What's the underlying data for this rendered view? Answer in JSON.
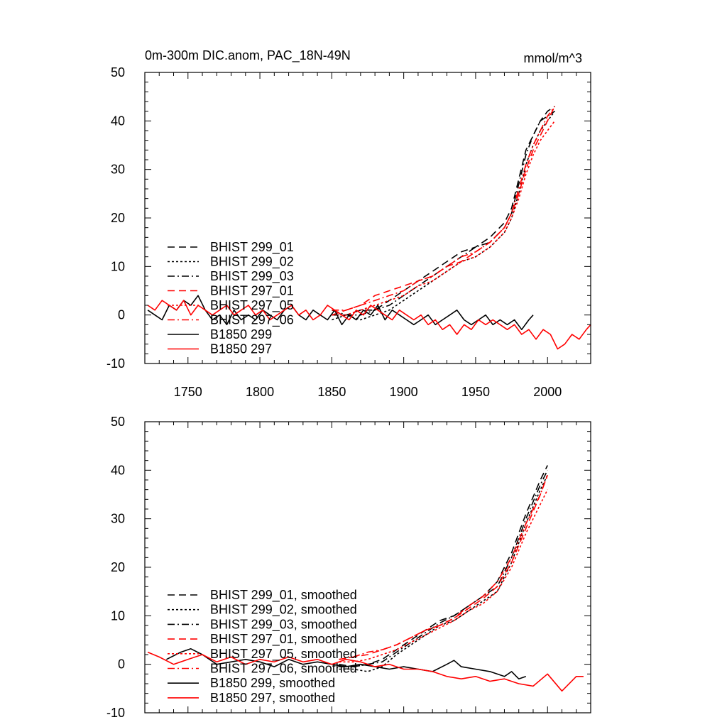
{
  "colors": {
    "black": "#000000",
    "red": "#ff0000"
  },
  "chart_data": [
    {
      "type": "line",
      "title": "0m-300m DIC.anom, PAC_18N-49N",
      "units": "mmol/m^3",
      "xlim": [
        1720,
        2030
      ],
      "ylim": [
        -10,
        50
      ],
      "x_ticks": [
        "1750",
        "1800",
        "1850",
        "1900",
        "1950",
        "2000"
      ],
      "y_ticks": [
        "-10",
        "0",
        "10",
        "20",
        "30",
        "40",
        "50"
      ],
      "legend_position": "left-center",
      "series": [
        {
          "name": "BHIST 299_01",
          "color": "#000000",
          "dash": "long-dash",
          "x": [
            1850,
            1860,
            1870,
            1880,
            1890,
            1900,
            1910,
            1920,
            1930,
            1940,
            1950,
            1960,
            1970,
            1975,
            1980,
            1985,
            1990,
            1995,
            2000,
            2005
          ],
          "y": [
            0,
            0,
            1,
            1,
            3,
            5,
            7,
            9,
            11,
            13,
            14,
            16,
            19,
            22,
            28,
            34,
            37,
            40,
            42,
            43
          ]
        },
        {
          "name": "BHIST 299_02",
          "color": "#000000",
          "dash": "short-dash",
          "x": [
            1850,
            1860,
            1870,
            1880,
            1890,
            1900,
            1910,
            1920,
            1930,
            1940,
            1950,
            1960,
            1970,
            1975,
            1980,
            1985,
            1990,
            1995,
            2000,
            2005
          ],
          "y": [
            -1,
            0,
            -1,
            0,
            1,
            3,
            5,
            7,
            9,
            11,
            12,
            14,
            17,
            20,
            25,
            31,
            35,
            38,
            40,
            42
          ]
        },
        {
          "name": "BHIST 299_03",
          "color": "#000000",
          "dash": "dash-dot",
          "x": [
            1850,
            1860,
            1870,
            1880,
            1890,
            1900,
            1910,
            1920,
            1930,
            1940,
            1950,
            1960,
            1970,
            1975,
            1980,
            1985,
            1990,
            1995,
            2000,
            2005
          ],
          "y": [
            1,
            0,
            0,
            1,
            2,
            4,
            6,
            8,
            10,
            12,
            14,
            15,
            18,
            21,
            27,
            33,
            37,
            40,
            41,
            42
          ]
        },
        {
          "name": "BHIST 297_01",
          "color": "#ff0000",
          "dash": "long-dash",
          "x": [
            1850,
            1860,
            1870,
            1880,
            1890,
            1900,
            1910,
            1920,
            1930,
            1940,
            1950,
            1960,
            1970,
            1975,
            1980,
            1985,
            1990,
            1995,
            2000,
            2005
          ],
          "y": [
            0,
            1,
            2,
            4,
            5,
            6,
            7,
            8,
            10,
            11,
            13,
            15,
            18,
            21,
            25,
            30,
            34,
            37,
            40,
            43
          ]
        },
        {
          "name": "BHIST 297_05",
          "color": "#ff0000",
          "dash": "short-dash",
          "x": [
            1850,
            1860,
            1870,
            1880,
            1890,
            1900,
            1910,
            1920,
            1930,
            1940,
            1950,
            1960,
            1970,
            1975,
            1980,
            1985,
            1990,
            1995,
            2000,
            2005
          ],
          "y": [
            0,
            0,
            1,
            2,
            3,
            4,
            6,
            7,
            9,
            11,
            12,
            14,
            17,
            20,
            24,
            29,
            33,
            36,
            38,
            40
          ]
        },
        {
          "name": "BHIST 297_06",
          "color": "#ff0000",
          "dash": "dash-dot",
          "x": [
            1850,
            1860,
            1870,
            1880,
            1890,
            1900,
            1910,
            1920,
            1930,
            1940,
            1950,
            1960,
            1970,
            1975,
            1980,
            1985,
            1990,
            1995,
            2000,
            2005
          ],
          "y": [
            1,
            1,
            2,
            3,
            4,
            5,
            7,
            8,
            10,
            12,
            13,
            15,
            18,
            21,
            26,
            31,
            35,
            38,
            41,
            43
          ]
        },
        {
          "name": "B1850 299",
          "color": "#000000",
          "dash": "solid",
          "x": [
            1722,
            1727,
            1732,
            1737,
            1742,
            1747,
            1752,
            1757,
            1762,
            1767,
            1772,
            1777,
            1782,
            1787,
            1792,
            1797,
            1802,
            1807,
            1812,
            1817,
            1822,
            1827,
            1832,
            1837,
            1842,
            1847,
            1852,
            1857,
            1862,
            1867,
            1872,
            1877,
            1882,
            1887,
            1892,
            1897,
            1902,
            1907,
            1912,
            1917,
            1922,
            1927,
            1932,
            1937,
            1942,
            1947,
            1952,
            1957,
            1962,
            1967,
            1972,
            1977,
            1982,
            1987,
            1990
          ],
          "y": [
            1,
            0,
            -1,
            2,
            1,
            3,
            2,
            4,
            1,
            -1,
            0,
            -2,
            1,
            -1,
            0,
            -1,
            1,
            0,
            -1,
            1,
            2,
            0,
            -1,
            1,
            0,
            -1,
            1,
            -2,
            0,
            -1,
            1,
            0,
            2,
            -1,
            1,
            0,
            -1,
            -2,
            -1,
            0,
            -2,
            -1,
            0,
            1,
            -1,
            -2,
            -1,
            0,
            -2,
            -1,
            -2,
            -1,
            -3,
            -1,
            0
          ]
        },
        {
          "name": "B1850 297",
          "color": "#ff0000",
          "dash": "solid",
          "x": [
            1722,
            1727,
            1732,
            1737,
            1742,
            1747,
            1752,
            1757,
            1762,
            1767,
            1772,
            1777,
            1782,
            1787,
            1792,
            1797,
            1802,
            1807,
            1812,
            1817,
            1822,
            1827,
            1832,
            1837,
            1842,
            1847,
            1852,
            1857,
            1862,
            1867,
            1872,
            1877,
            1882,
            1887,
            1892,
            1897,
            1902,
            1907,
            1912,
            1917,
            1922,
            1927,
            1932,
            1937,
            1942,
            1947,
            1952,
            1957,
            1962,
            1967,
            1972,
            1977,
            1982,
            1987,
            1992,
            1997,
            2002,
            2007,
            2012,
            2017,
            2022,
            2027,
            2030
          ],
          "y": [
            2,
            1,
            3,
            2,
            1,
            3,
            0,
            2,
            1,
            0,
            1,
            2,
            0,
            1,
            2,
            0,
            1,
            -1,
            0,
            1,
            2,
            0,
            1,
            -1,
            0,
            2,
            1,
            0,
            -1,
            1,
            0,
            2,
            1,
            0,
            -1,
            1,
            0,
            -1,
            0,
            -2,
            -1,
            -3,
            -2,
            -4,
            -2,
            -3,
            -1,
            -2,
            -1,
            -2,
            -3,
            -2,
            -4,
            -3,
            -5,
            -3,
            -4,
            -7,
            -6,
            -4,
            -5,
            -3,
            -2
          ]
        }
      ]
    },
    {
      "type": "line",
      "xlim": [
        1720,
        2030
      ],
      "ylim": [
        -10,
        50
      ],
      "y_ticks": [
        "-10",
        "0",
        "10",
        "20",
        "30",
        "40",
        "50"
      ],
      "legend_position": "left-bottom",
      "series": [
        {
          "name": "BHIST 299_01, smoothed",
          "color": "#000000",
          "dash": "long-dash",
          "x": [
            1855,
            1865,
            1875,
            1885,
            1895,
            1905,
            1915,
            1925,
            1935,
            1945,
            1955,
            1965,
            1975,
            1985,
            1995,
            2000
          ],
          "y": [
            -0.5,
            -0.5,
            0,
            1,
            3,
            5,
            7,
            9,
            10,
            12,
            14,
            17,
            23,
            31,
            38,
            41
          ]
        },
        {
          "name": "BHIST 299_02, smoothed",
          "color": "#000000",
          "dash": "short-dash",
          "x": [
            1855,
            1865,
            1875,
            1885,
            1895,
            1905,
            1915,
            1925,
            1935,
            1945,
            1955,
            1965,
            1975,
            1985,
            1995,
            2000
          ],
          "y": [
            -1,
            -1,
            -1.5,
            -0.5,
            2,
            4,
            6,
            8,
            9,
            11,
            13,
            15,
            21,
            29,
            36,
            39
          ]
        },
        {
          "name": "BHIST 299_03, smoothed",
          "color": "#000000",
          "dash": "dash-dot",
          "x": [
            1855,
            1865,
            1875,
            1885,
            1895,
            1905,
            1915,
            1925,
            1935,
            1945,
            1955,
            1965,
            1975,
            1985,
            1995,
            2000
          ],
          "y": [
            0,
            -0.5,
            0,
            0.5,
            2.5,
            4.5,
            6.5,
            8.5,
            10,
            12,
            14,
            16,
            22,
            30,
            37,
            40
          ]
        },
        {
          "name": "BHIST 297_01, smoothed",
          "color": "#ff0000",
          "dash": "long-dash",
          "x": [
            1855,
            1865,
            1875,
            1885,
            1895,
            1905,
            1915,
            1925,
            1935,
            1945,
            1955,
            1965,
            1975,
            1985,
            1995,
            2000
          ],
          "y": [
            1,
            1.5,
            2,
            3,
            4,
            5.5,
            7,
            8,
            9.5,
            11.5,
            13.5,
            16,
            21,
            28,
            35,
            39
          ]
        },
        {
          "name": "BHIST 297_05, smoothed",
          "color": "#ff0000",
          "dash": "short-dash",
          "x": [
            1855,
            1865,
            1875,
            1885,
            1895,
            1905,
            1915,
            1925,
            1935,
            1945,
            1955,
            1965,
            1975,
            1985,
            1995,
            2000
          ],
          "y": [
            0.5,
            0.5,
            1,
            2,
            3,
            4.5,
            6,
            7.5,
            9,
            11,
            12.5,
            15,
            20,
            27,
            33,
            36
          ]
        },
        {
          "name": "BHIST 297_06, smoothed",
          "color": "#ff0000",
          "dash": "dash-dot",
          "x": [
            1855,
            1865,
            1875,
            1885,
            1895,
            1905,
            1915,
            1925,
            1935,
            1945,
            1955,
            1965,
            1975,
            1985,
            1995,
            2000
          ],
          "y": [
            1,
            1.5,
            2.5,
            3,
            4,
            5.5,
            7,
            8,
            9.5,
            12,
            14,
            17,
            22,
            29,
            35,
            39
          ]
        },
        {
          "name": "B1850 299, smoothed",
          "color": "#000000",
          "dash": "solid",
          "x": [
            1735,
            1745,
            1752,
            1760,
            1770,
            1780,
            1790,
            1800,
            1810,
            1820,
            1830,
            1840,
            1850,
            1860,
            1870,
            1880,
            1890,
            1900,
            1910,
            1920,
            1930,
            1935,
            1940,
            1950,
            1960,
            1970,
            1975,
            1980,
            1985
          ],
          "y": [
            1,
            2.5,
            3.2,
            2,
            0,
            0.5,
            1,
            0.5,
            -0.5,
            1,
            0,
            0.5,
            0,
            -0.5,
            0,
            -0.5,
            -1,
            -0.5,
            -1,
            -1.5,
            0,
            0.8,
            -0.5,
            -1,
            -1.5,
            -2.5,
            -1.5,
            -3,
            -2.5
          ]
        },
        {
          "name": "B1850 297, smoothed",
          "color": "#ff0000",
          "dash": "solid",
          "x": [
            1722,
            1730,
            1740,
            1750,
            1760,
            1770,
            1780,
            1790,
            1800,
            1810,
            1820,
            1830,
            1840,
            1850,
            1860,
            1870,
            1880,
            1890,
            1900,
            1910,
            1920,
            1930,
            1940,
            1950,
            1960,
            1970,
            1980,
            1990,
            2000,
            2010,
            2020,
            2025
          ],
          "y": [
            2.5,
            1.5,
            0,
            1,
            2,
            0.5,
            1.5,
            0,
            1,
            0.5,
            1.5,
            0.5,
            1,
            0,
            1,
            0.5,
            -0.5,
            0,
            -1,
            -1,
            -1.5,
            -2.5,
            -3,
            -2.5,
            -3.5,
            -3,
            -4,
            -4.5,
            -2,
            -5.5,
            -2.5,
            -2.5
          ]
        }
      ]
    }
  ]
}
